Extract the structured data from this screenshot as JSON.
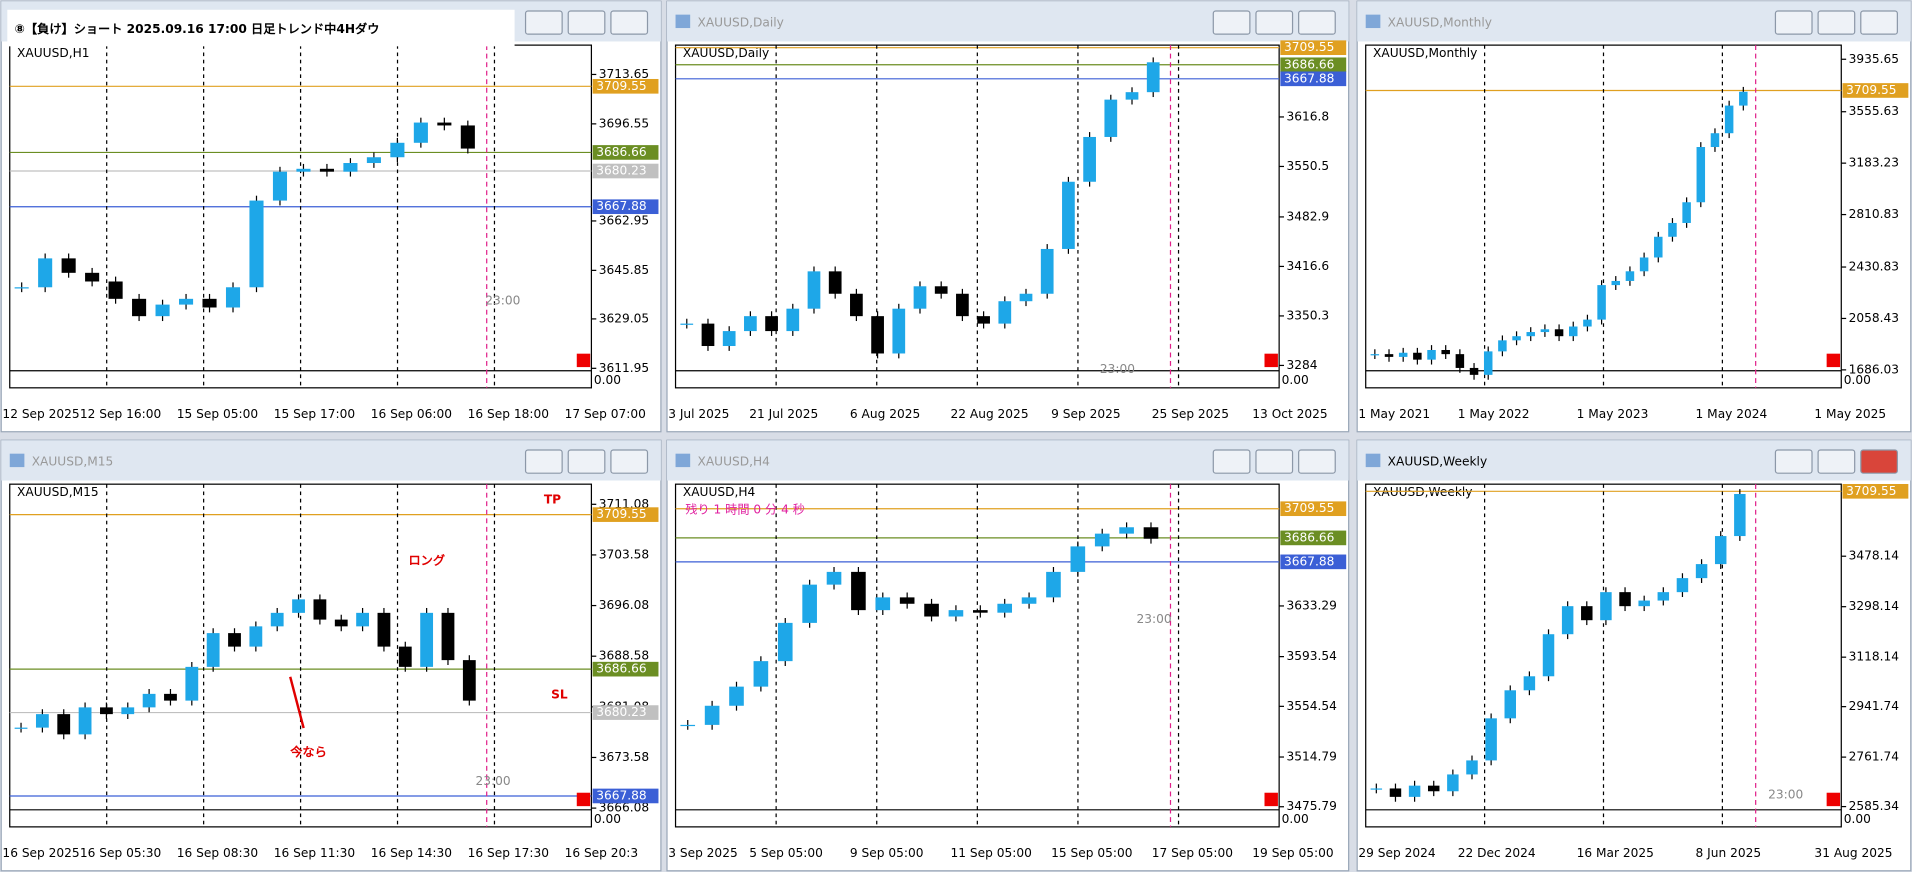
{
  "overlay_label": "⑧【負け】ショート 2025.09.16 17:00 日足トレンド中4Hダウ",
  "up_color": "#1ea7e8",
  "down_color": "#000000",
  "windows": [
    {
      "symbol": "XAUUSD,H1",
      "ylim": [
        3605.2,
        3723.8
      ],
      "yticks": [
        3713.65,
        3696.55,
        3662.95,
        3645.85,
        3629.05,
        3611.95
      ],
      "tags": [
        {
          "value": 3709.55,
          "color": "#e0a020"
        },
        {
          "value": 3686.66,
          "color": "#6b8e23"
        },
        {
          "value": 3680.23,
          "color": "#c0c0c0"
        },
        {
          "value": 3667.88,
          "color": "#3b5fd6"
        }
      ],
      "x_labels": [
        "12 Sep 2025",
        "12 Sep 16:00",
        "15 Sep 05:00",
        "15 Sep 17:00",
        "16 Sep 06:00",
        "16 Sep 18:00",
        "17 Sep 07:00"
      ],
      "closes": [
        3640,
        3650,
        3645,
        3642,
        3636,
        3630,
        3634,
        3636,
        3633,
        3640,
        3670,
        3680,
        3681,
        3680,
        3683,
        3685,
        3690,
        3697,
        3696,
        3688
      ],
      "sub_label": "0.00",
      "notes": [
        {
          "text": "23:00",
          "color": "#888888"
        }
      ]
    },
    {
      "title": "XAUUSD,Daily",
      "symbol": "XAUUSD,Daily",
      "ylim": [
        3254,
        3713
      ],
      "yticks": [
        3616.8,
        3550.5,
        3482.9,
        3416.6,
        3350.3,
        3284.0
      ],
      "tags": [
        {
          "value": 3709.55,
          "color": "#e0a020"
        },
        {
          "value": 3686.66,
          "color": "#6b8e23"
        },
        {
          "value": 3667.88,
          "color": "#3b5fd6"
        }
      ],
      "x_labels": [
        "3 Jul 2025",
        "21 Jul 2025",
        "6 Aug 2025",
        "22 Aug 2025",
        "9 Sep 2025",
        "25 Sep 2025",
        "13 Oct 2025"
      ],
      "closes": [
        3340,
        3310,
        3330,
        3350,
        3330,
        3360,
        3410,
        3380,
        3350,
        3300,
        3360,
        3390,
        3380,
        3350,
        3340,
        3370,
        3380,
        3440,
        3530,
        3590,
        3640,
        3650,
        3690
      ],
      "sub_label": "0.00",
      "notes": [
        {
          "text": "23:00",
          "color": "#888888"
        }
      ]
    },
    {
      "title": "XAUUSD,Monthly",
      "symbol": "XAUUSD,Monthly",
      "ylim": [
        1556,
        4038
      ],
      "yticks": [
        3935.65,
        3555.63,
        3183.23,
        2810.83,
        2430.83,
        2058.43,
        1686.03
      ],
      "tags": [
        {
          "value": 3709.55,
          "color": "#e0a020"
        }
      ],
      "x_labels": [
        "1 May 2021",
        "1 May 2022",
        "1 May 2023",
        "1 May 2024",
        "1 May 2025"
      ],
      "closes": [
        1800,
        1780,
        1810,
        1760,
        1830,
        1800,
        1700,
        1650,
        1820,
        1900,
        1930,
        1960,
        1980,
        1930,
        2000,
        2050,
        2300,
        2330,
        2400,
        2500,
        2650,
        2750,
        2900,
        3300,
        3400,
        3600,
        3700
      ],
      "sub_label": "0.00",
      "notes": []
    },
    {
      "title": "XAUUSD,M15",
      "symbol": "XAUUSD,M15",
      "ylim": [
        3663.3,
        3714.06
      ],
      "yticks": [
        3711.08,
        3703.58,
        3696.08,
        3688.58,
        3681.08,
        3673.58,
        3666.08
      ],
      "tags": [
        {
          "value": 3709.55,
          "color": "#e0a020"
        },
        {
          "value": 3686.66,
          "color": "#6b8e23"
        },
        {
          "value": 3680.23,
          "color": "#c0c0c0"
        },
        {
          "value": 3667.88,
          "color": "#3b5fd6"
        }
      ],
      "x_labels": [
        "16 Sep 2025",
        "16 Sep 05:30",
        "16 Sep 08:30",
        "16 Sep 11:30",
        "16 Sep 14:30",
        "16 Sep 17:30",
        "16 Sep 20:3"
      ],
      "closes": [
        3678,
        3680,
        3677,
        3681,
        3680,
        3681,
        3683,
        3682,
        3687,
        3692,
        3690,
        3693,
        3695,
        3697,
        3694,
        3693,
        3695,
        3690,
        3687,
        3695,
        3688,
        3682
      ],
      "sub_label": "0.00",
      "notes": [
        {
          "text": "TP",
          "color": "#e00000"
        },
        {
          "text": "ロング",
          "color": "#e00000"
        },
        {
          "text": "SL",
          "color": "#e00000"
        },
        {
          "text": "今なら",
          "color": "#e00000"
        },
        {
          "text": "23:00",
          "color": "#888888"
        }
      ]
    },
    {
      "title": "XAUUSD,H4",
      "symbol": "XAUUSD,H4",
      "ylim": [
        3460,
        3728.8
      ],
      "yticks": [
        3633.29,
        3593.54,
        3554.54,
        3514.79,
        3475.79
      ],
      "tags": [
        {
          "value": 3709.55,
          "color": "#e0a020"
        },
        {
          "value": 3686.66,
          "color": "#6b8e23"
        },
        {
          "value": 3667.88,
          "color": "#3b5fd6"
        }
      ],
      "x_labels": [
        "3 Sep 2025",
        "5 Sep 05:00",
        "9 Sep 05:00",
        "11 Sep 05:00",
        "15 Sep 05:00",
        "17 Sep 05:00",
        "19 Sep 05:00"
      ],
      "closes": [
        3540,
        3555,
        3570,
        3590,
        3620,
        3650,
        3660,
        3630,
        3640,
        3635,
        3625,
        3630,
        3628,
        3635,
        3640,
        3660,
        3680,
        3690,
        3695,
        3686
      ],
      "sub_label": "0.00",
      "notes": [
        {
          "text": "残り 1 時間 0 分 4 秒",
          "color": "#e020a0"
        },
        {
          "text": "23:00",
          "color": "#888888"
        }
      ]
    },
    {
      "title": "XAUUSD,Weekly",
      "symbol": "XAUUSD,Weekly",
      "ylim": [
        2513,
        3735
      ],
      "yticks": [
        3478.14,
        3298.14,
        3118.14,
        2941.74,
        2761.74,
        2585.34
      ],
      "tags": [
        {
          "value": 3709.55,
          "color": "#e0a020"
        }
      ],
      "x_labels": [
        "29 Sep 2024",
        "22 Dec 2024",
        "16 Mar 2025",
        "8 Jun 2025",
        "31 Aug 2025"
      ],
      "closes": [
        2650,
        2620,
        2660,
        2640,
        2700,
        2750,
        2900,
        3000,
        3050,
        3200,
        3300,
        3250,
        3350,
        3300,
        3320,
        3350,
        3400,
        3450,
        3550,
        3700
      ],
      "sub_label": "0.00",
      "notes": [
        {
          "text": "23:00",
          "color": "#888888"
        }
      ]
    }
  ]
}
